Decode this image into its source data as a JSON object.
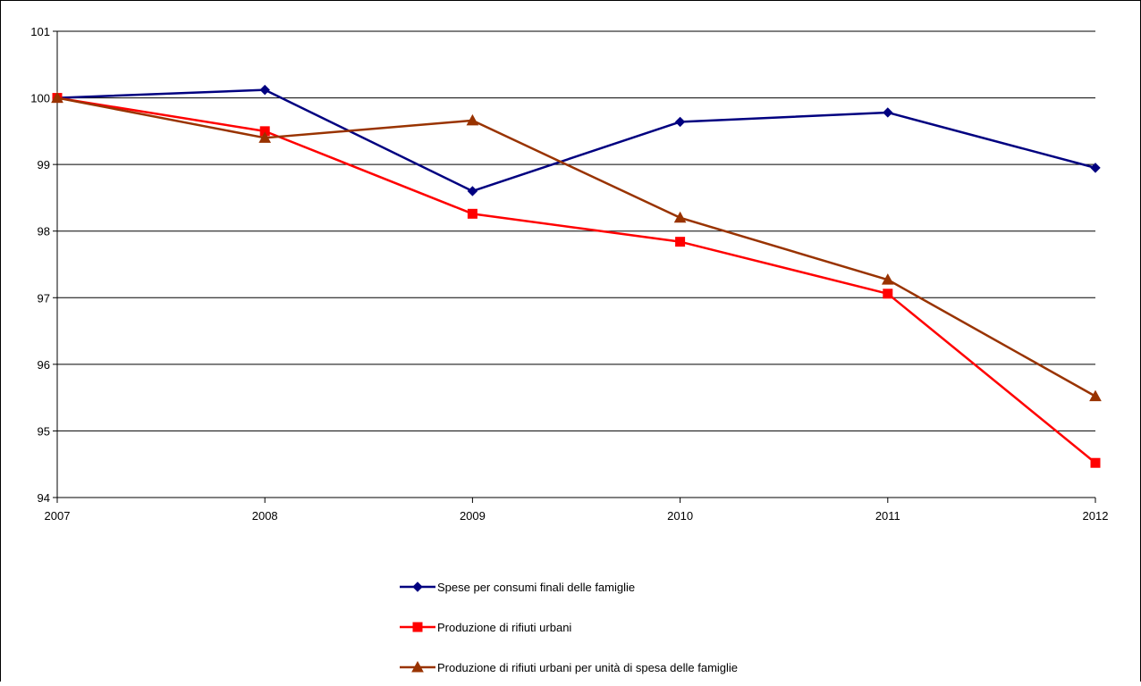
{
  "chart_data": {
    "type": "line",
    "title": "",
    "xlabel": "",
    "ylabel": "",
    "x": [
      "2007",
      "2008",
      "2009",
      "2010",
      "2011",
      "2012"
    ],
    "ylim": [
      94,
      101
    ],
    "yticks": [
      94,
      95,
      96,
      97,
      98,
      99,
      100,
      101
    ],
    "grid": "horizontal",
    "legend_position": "bottom",
    "series": [
      {
        "name": "Spese per consumi finali delle famiglie",
        "values": [
          100.0,
          100.12,
          98.6,
          99.64,
          99.78,
          98.95
        ],
        "color": "#000080",
        "marker": "diamond"
      },
      {
        "name": "Produzione di rifiuti urbani",
        "values": [
          100.0,
          99.5,
          98.26,
          97.84,
          97.06,
          94.52
        ],
        "color": "#ff0000",
        "marker": "square"
      },
      {
        "name": "Produzione di rifiuti urbani per unità di spesa delle famiglie",
        "values": [
          100.0,
          99.4,
          99.66,
          98.2,
          97.27,
          95.52
        ],
        "color": "#993300",
        "marker": "triangle"
      }
    ]
  }
}
